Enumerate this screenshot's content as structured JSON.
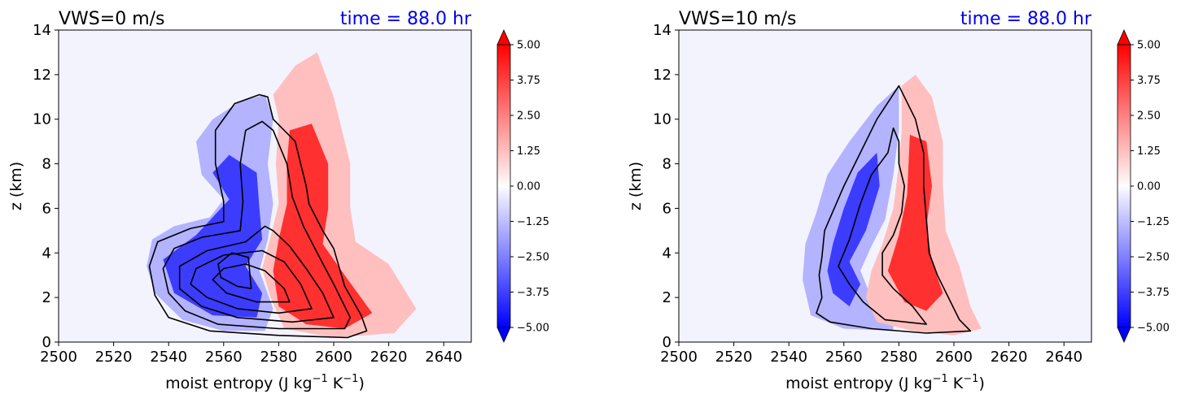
{
  "chart_data": [
    {
      "type": "contour",
      "title": "VWS=0 m/s",
      "time_label": "time = 88.0 hr",
      "xlabel": "moist entropy (J kg",
      "xlabel_sup1": "−1",
      "xlabel_mid": " K",
      "xlabel_sup2": "−1",
      "xlabel_end": ")",
      "ylabel": "z (km)",
      "xlim": [
        2500,
        2650
      ],
      "ylim": [
        0,
        14
      ],
      "xticks": [
        "2500",
        "2520",
        "2540",
        "2560",
        "2580",
        "2600",
        "2620",
        "2640"
      ],
      "yticks": [
        "0",
        "2",
        "4",
        "6",
        "8",
        "10",
        "12",
        "14"
      ],
      "colorbar_ticks": [
        "5.00",
        "3.75",
        "2.50",
        "1.25",
        "0.00",
        "−1.25",
        "−2.50",
        "−3.75",
        "−5.00"
      ],
      "colorbar_range": [
        -5,
        5
      ],
      "blue_region": [
        [
          2575,
          11.1
        ],
        [
          2566,
          10.8
        ],
        [
          2556,
          10.0
        ],
        [
          2550,
          9.0
        ],
        [
          2552,
          7.5
        ],
        [
          2560,
          6.4
        ],
        [
          2555,
          5.6
        ],
        [
          2542,
          5.2
        ],
        [
          2534,
          4.6
        ],
        [
          2532,
          3.4
        ],
        [
          2535,
          2.2
        ],
        [
          2545,
          1.0
        ],
        [
          2560,
          0.5
        ],
        [
          2575,
          0.5
        ],
        [
          2578,
          1.5
        ],
        [
          2573,
          3.2
        ],
        [
          2576,
          4.6
        ],
        [
          2578,
          6.2
        ],
        [
          2576,
          8.0
        ],
        [
          2578,
          10.0
        ]
      ],
      "red_region": [
        [
          2578,
          11.1
        ],
        [
          2586,
          12.4
        ],
        [
          2594,
          13.0
        ],
        [
          2600,
          11.0
        ],
        [
          2606,
          8.0
        ],
        [
          2606,
          6.0
        ],
        [
          2608,
          4.5
        ],
        [
          2620,
          3.5
        ],
        [
          2630,
          1.5
        ],
        [
          2622,
          0.4
        ],
        [
          2600,
          0.2
        ],
        [
          2582,
          0.6
        ],
        [
          2577,
          2.0
        ],
        [
          2574,
          3.3
        ],
        [
          2577,
          4.7
        ],
        [
          2580,
          6.2
        ],
        [
          2579,
          8.0
        ],
        [
          2580,
          10.0
        ]
      ],
      "blue_core": [
        [
          2562,
          8.4
        ],
        [
          2556,
          7.6
        ],
        [
          2562,
          6.4
        ],
        [
          2550,
          4.8
        ],
        [
          2538,
          3.7
        ],
        [
          2542,
          2.2
        ],
        [
          2556,
          1.2
        ],
        [
          2572,
          1.1
        ],
        [
          2574,
          2.2
        ],
        [
          2568,
          3.4
        ],
        [
          2574,
          4.6
        ],
        [
          2573,
          6.0
        ],
        [
          2572,
          7.6
        ]
      ],
      "red_core": [
        [
          2584,
          9.5
        ],
        [
          2592,
          9.8
        ],
        [
          2598,
          8.0
        ],
        [
          2598,
          6.0
        ],
        [
          2596,
          4.4
        ],
        [
          2604,
          3.0
        ],
        [
          2614,
          1.3
        ],
        [
          2604,
          0.6
        ],
        [
          2590,
          0.8
        ],
        [
          2580,
          1.6
        ],
        [
          2578,
          3.2
        ],
        [
          2580,
          4.6
        ],
        [
          2583,
          6.2
        ],
        [
          2583,
          8.0
        ]
      ],
      "contours": [
        [
          [
            2573,
            11.1
          ],
          [
            2576,
            11.0
          ],
          [
            2578,
            10.0
          ],
          [
            2586,
            9.0
          ],
          [
            2588,
            8.0
          ],
          [
            2590,
            7.0
          ],
          [
            2591,
            6.2
          ],
          [
            2596,
            5.0
          ],
          [
            2600,
            4.2
          ],
          [
            2604,
            2.5
          ],
          [
            2610,
            1.2
          ],
          [
            2612,
            0.5
          ],
          [
            2605,
            0.2
          ],
          [
            2580,
            0.3
          ],
          [
            2555,
            0.5
          ],
          [
            2540,
            1.1
          ],
          [
            2535,
            2.1
          ],
          [
            2533,
            3.4
          ],
          [
            2536,
            4.5
          ],
          [
            2548,
            5.1
          ],
          [
            2560,
            5.4
          ],
          [
            2560,
            6.3
          ],
          [
            2557,
            8.0
          ],
          [
            2557,
            9.5
          ],
          [
            2564,
            10.7
          ],
          [
            2573,
            11.1
          ]
        ],
        [
          [
            2574,
            9.9
          ],
          [
            2578,
            9.5
          ],
          [
            2583,
            8.0
          ],
          [
            2585,
            6.5
          ],
          [
            2589,
            5.2
          ],
          [
            2594,
            4.0
          ],
          [
            2600,
            2.6
          ],
          [
            2606,
            1.1
          ],
          [
            2604,
            0.6
          ],
          [
            2580,
            0.6
          ],
          [
            2558,
            0.8
          ],
          [
            2546,
            1.4
          ],
          [
            2540,
            2.2
          ],
          [
            2538,
            3.3
          ],
          [
            2542,
            4.2
          ],
          [
            2552,
            4.7
          ],
          [
            2566,
            5.0
          ],
          [
            2567,
            6.3
          ],
          [
            2566,
            8.0
          ],
          [
            2568,
            9.5
          ],
          [
            2574,
            9.9
          ]
        ],
        [
          [
            2575,
            5.2
          ],
          [
            2578,
            5.0
          ],
          [
            2584,
            4.3
          ],
          [
            2590,
            3.3
          ],
          [
            2596,
            2.2
          ],
          [
            2600,
            1.1
          ],
          [
            2585,
            0.9
          ],
          [
            2565,
            1.1
          ],
          [
            2552,
            1.6
          ],
          [
            2544,
            2.4
          ],
          [
            2544,
            3.4
          ],
          [
            2554,
            4.1
          ],
          [
            2568,
            4.5
          ],
          [
            2575,
            5.2
          ]
        ],
        [
          [
            2574,
            4.1
          ],
          [
            2582,
            3.6
          ],
          [
            2588,
            2.6
          ],
          [
            2592,
            1.5
          ],
          [
            2580,
            1.3
          ],
          [
            2565,
            1.5
          ],
          [
            2554,
            2.0
          ],
          [
            2548,
            2.6
          ],
          [
            2550,
            3.3
          ],
          [
            2560,
            3.9
          ],
          [
            2574,
            4.1
          ]
        ],
        [
          [
            2568,
            3.5
          ],
          [
            2575,
            3.2
          ],
          [
            2582,
            2.4
          ],
          [
            2584,
            1.8
          ],
          [
            2572,
            1.8
          ],
          [
            2561,
            2.2
          ],
          [
            2556,
            2.8
          ],
          [
            2560,
            3.3
          ],
          [
            2568,
            3.5
          ]
        ],
        [
          [
            2563,
            4.0
          ],
          [
            2569,
            3.8
          ],
          [
            2570,
            2.4
          ],
          [
            2565,
            2.5
          ],
          [
            2559,
            2.9
          ],
          [
            2558,
            3.5
          ],
          [
            2563,
            4.0
          ]
        ]
      ]
    },
    {
      "type": "contour",
      "title": "VWS=10 m/s",
      "time_label": "time = 88.0 hr",
      "xlabel": "moist entropy (J kg",
      "xlabel_sup1": "−1",
      "xlabel_mid": " K",
      "xlabel_sup2": "−1",
      "xlabel_end": ")",
      "ylabel": "z (km)",
      "xlim": [
        2500,
        2650
      ],
      "ylim": [
        0,
        14
      ],
      "xticks": [
        "2500",
        "2520",
        "2540",
        "2560",
        "2580",
        "2600",
        "2620",
        "2640"
      ],
      "yticks": [
        "0",
        "2",
        "4",
        "6",
        "8",
        "10",
        "12",
        "14"
      ],
      "colorbar_ticks": [
        "5.00",
        "3.75",
        "2.50",
        "1.25",
        "0.00",
        "−1.25",
        "−2.50",
        "−3.75",
        "−5.00"
      ],
      "colorbar_range": [
        -5,
        5
      ],
      "blue_region": [
        [
          2580,
          11.5
        ],
        [
          2572,
          10.6
        ],
        [
          2562,
          9.0
        ],
        [
          2554,
          7.5
        ],
        [
          2550,
          5.8
        ],
        [
          2546,
          4.4
        ],
        [
          2545,
          2.8
        ],
        [
          2548,
          1.2
        ],
        [
          2560,
          0.6
        ],
        [
          2578,
          0.5
        ],
        [
          2578,
          1.2
        ],
        [
          2570,
          2.0
        ],
        [
          2566,
          3.2
        ],
        [
          2570,
          4.3
        ],
        [
          2575,
          5.5
        ],
        [
          2578,
          7.5
        ],
        [
          2580,
          9.5
        ]
      ],
      "red_region": [
        [
          2581,
          11.5
        ],
        [
          2586,
          12.0
        ],
        [
          2592,
          11.0
        ],
        [
          2596,
          9.0
        ],
        [
          2596,
          7.0
        ],
        [
          2597,
          5.0
        ],
        [
          2602,
          3.4
        ],
        [
          2606,
          1.6
        ],
        [
          2610,
          0.6
        ],
        [
          2600,
          0.3
        ],
        [
          2585,
          0.5
        ],
        [
          2572,
          0.9
        ],
        [
          2568,
          2.0
        ],
        [
          2570,
          3.2
        ],
        [
          2574,
          4.4
        ],
        [
          2578,
          6.0
        ],
        [
          2580,
          8.0
        ],
        [
          2581,
          9.5
        ]
      ],
      "blue_core": [
        [
          2572,
          8.5
        ],
        [
          2565,
          7.6
        ],
        [
          2560,
          6.0
        ],
        [
          2556,
          4.4
        ],
        [
          2554,
          3.2
        ],
        [
          2556,
          2.2
        ],
        [
          2562,
          1.6
        ],
        [
          2566,
          2.6
        ],
        [
          2562,
          3.6
        ],
        [
          2568,
          5.0
        ],
        [
          2573,
          7.0
        ]
      ],
      "red_core": [
        [
          2584,
          9.3
        ],
        [
          2590,
          9.0
        ],
        [
          2592,
          7.0
        ],
        [
          2590,
          5.2
        ],
        [
          2592,
          3.6
        ],
        [
          2596,
          2.2
        ],
        [
          2590,
          1.4
        ],
        [
          2582,
          1.8
        ],
        [
          2576,
          3.2
        ],
        [
          2580,
          4.8
        ],
        [
          2583,
          6.6
        ]
      ],
      "contours": [
        [
          [
            2580,
            11.5
          ],
          [
            2582,
            11.0
          ],
          [
            2586,
            10.0
          ],
          [
            2589,
            8.5
          ],
          [
            2589,
            7.0
          ],
          [
            2590,
            5.5
          ],
          [
            2591,
            4.0
          ],
          [
            2594,
            3.0
          ],
          [
            2598,
            2.0
          ],
          [
            2602,
            1.0
          ],
          [
            2606,
            0.5
          ],
          [
            2590,
            0.4
          ],
          [
            2570,
            0.6
          ],
          [
            2555,
            0.9
          ],
          [
            2550,
            1.3
          ],
          [
            2552,
            2.0
          ],
          [
            2551,
            3.0
          ],
          [
            2552,
            3.8
          ],
          [
            2553,
            5.0
          ],
          [
            2560,
            7.0
          ],
          [
            2566,
            8.5
          ],
          [
            2572,
            10.0
          ],
          [
            2580,
            11.5
          ]
        ],
        [
          [
            2578,
            9.6
          ],
          [
            2580,
            9.0
          ],
          [
            2580,
            8.0
          ],
          [
            2582,
            7.0
          ],
          [
            2581,
            5.8
          ],
          [
            2578,
            4.8
          ],
          [
            2574,
            4.0
          ],
          [
            2574,
            3.0
          ],
          [
            2578,
            2.4
          ],
          [
            2585,
            1.6
          ],
          [
            2590,
            0.8
          ],
          [
            2575,
            1.0
          ],
          [
            2567,
            1.8
          ],
          [
            2562,
            2.6
          ],
          [
            2558,
            3.4
          ],
          [
            2562,
            4.6
          ],
          [
            2566,
            6.2
          ],
          [
            2570,
            7.5
          ],
          [
            2576,
            8.5
          ],
          [
            2578,
            9.6
          ]
        ]
      ]
    }
  ]
}
